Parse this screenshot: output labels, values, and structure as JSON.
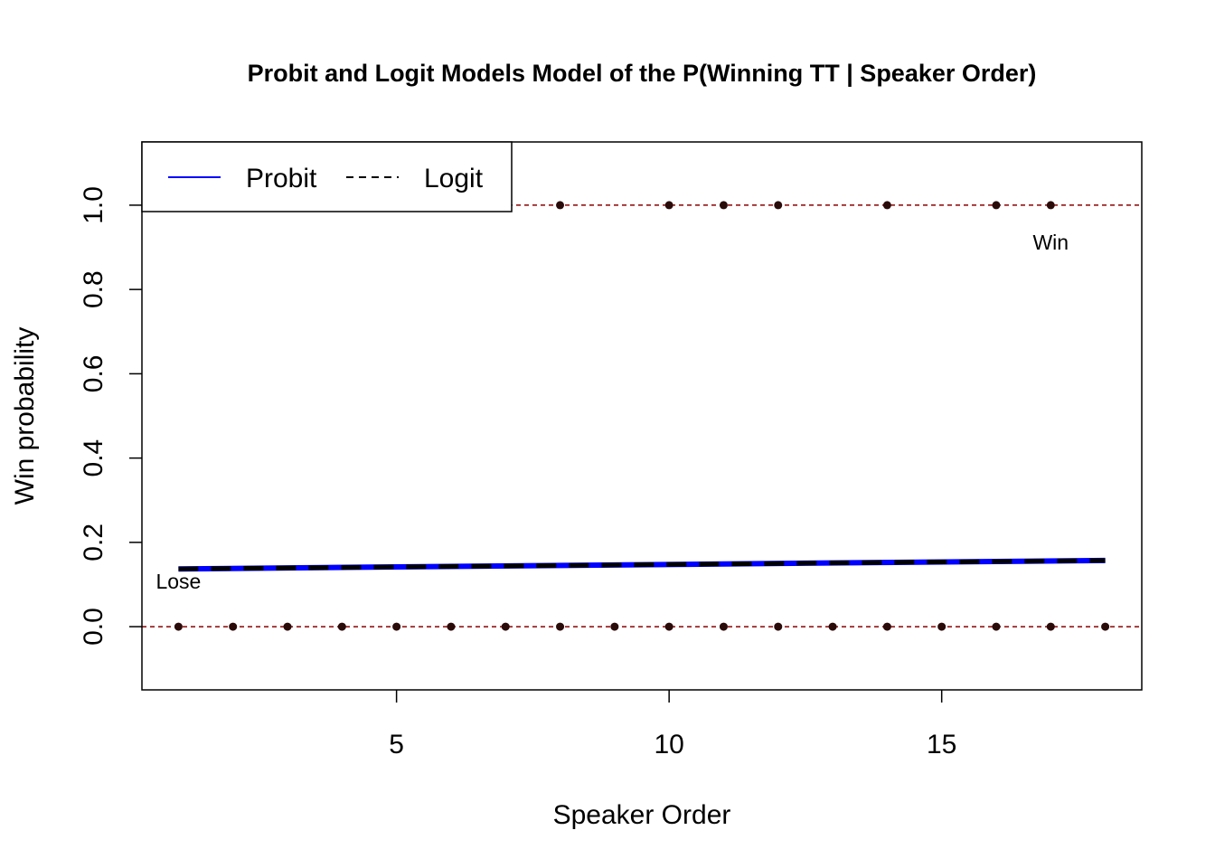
{
  "chart_data": {
    "type": "scatter",
    "title": "Probit and Logit Models Model of the P(Winning TT | Speaker Order)",
    "xlabel": "Speaker Order",
    "ylabel": "Win probability",
    "xlim": [
      0.33,
      18.67
    ],
    "ylim": [
      -0.15,
      1.15
    ],
    "xticks": [
      5,
      10,
      15
    ],
    "yticks": [
      0.0,
      0.2,
      0.4,
      0.6,
      0.8,
      1.0
    ],
    "ytick_labels": [
      "0.0",
      "0.2",
      "0.4",
      "0.6",
      "0.8",
      "1.0"
    ],
    "xtick_labels": [
      "5",
      "10",
      "15"
    ],
    "reference_lines": [
      0,
      1
    ],
    "reference_line_color": "#8b0000",
    "points": {
      "x": [
        1,
        2,
        3,
        4,
        5,
        6,
        7,
        8,
        8,
        9,
        10,
        10,
        11,
        11,
        12,
        12,
        13,
        14,
        14,
        15,
        16,
        16,
        17,
        17,
        18
      ],
      "y": [
        0,
        0,
        0,
        0,
        0,
        0,
        0,
        0,
        1,
        0,
        0,
        1,
        0,
        1,
        0,
        1,
        0,
        0,
        1,
        0,
        0,
        1,
        0,
        1,
        0
      ],
      "color": "#2b0a0a"
    },
    "series": [
      {
        "name": "Probit",
        "x": [
          1,
          18
        ],
        "y": [
          0.137,
          0.157
        ],
        "color": "#0000ff",
        "style": "solid"
      },
      {
        "name": "Logit",
        "x": [
          1,
          18
        ],
        "y": [
          0.137,
          0.157
        ],
        "color": "#000000",
        "style": "dashed"
      }
    ],
    "annotations": [
      {
        "text": "Lose",
        "x": 1,
        "y": 0.09
      },
      {
        "text": "Win",
        "x": 17,
        "y": 0.895
      }
    ],
    "legend": {
      "position": "top-left",
      "entries": [
        "Probit",
        "Logit"
      ]
    },
    "grid": false
  }
}
